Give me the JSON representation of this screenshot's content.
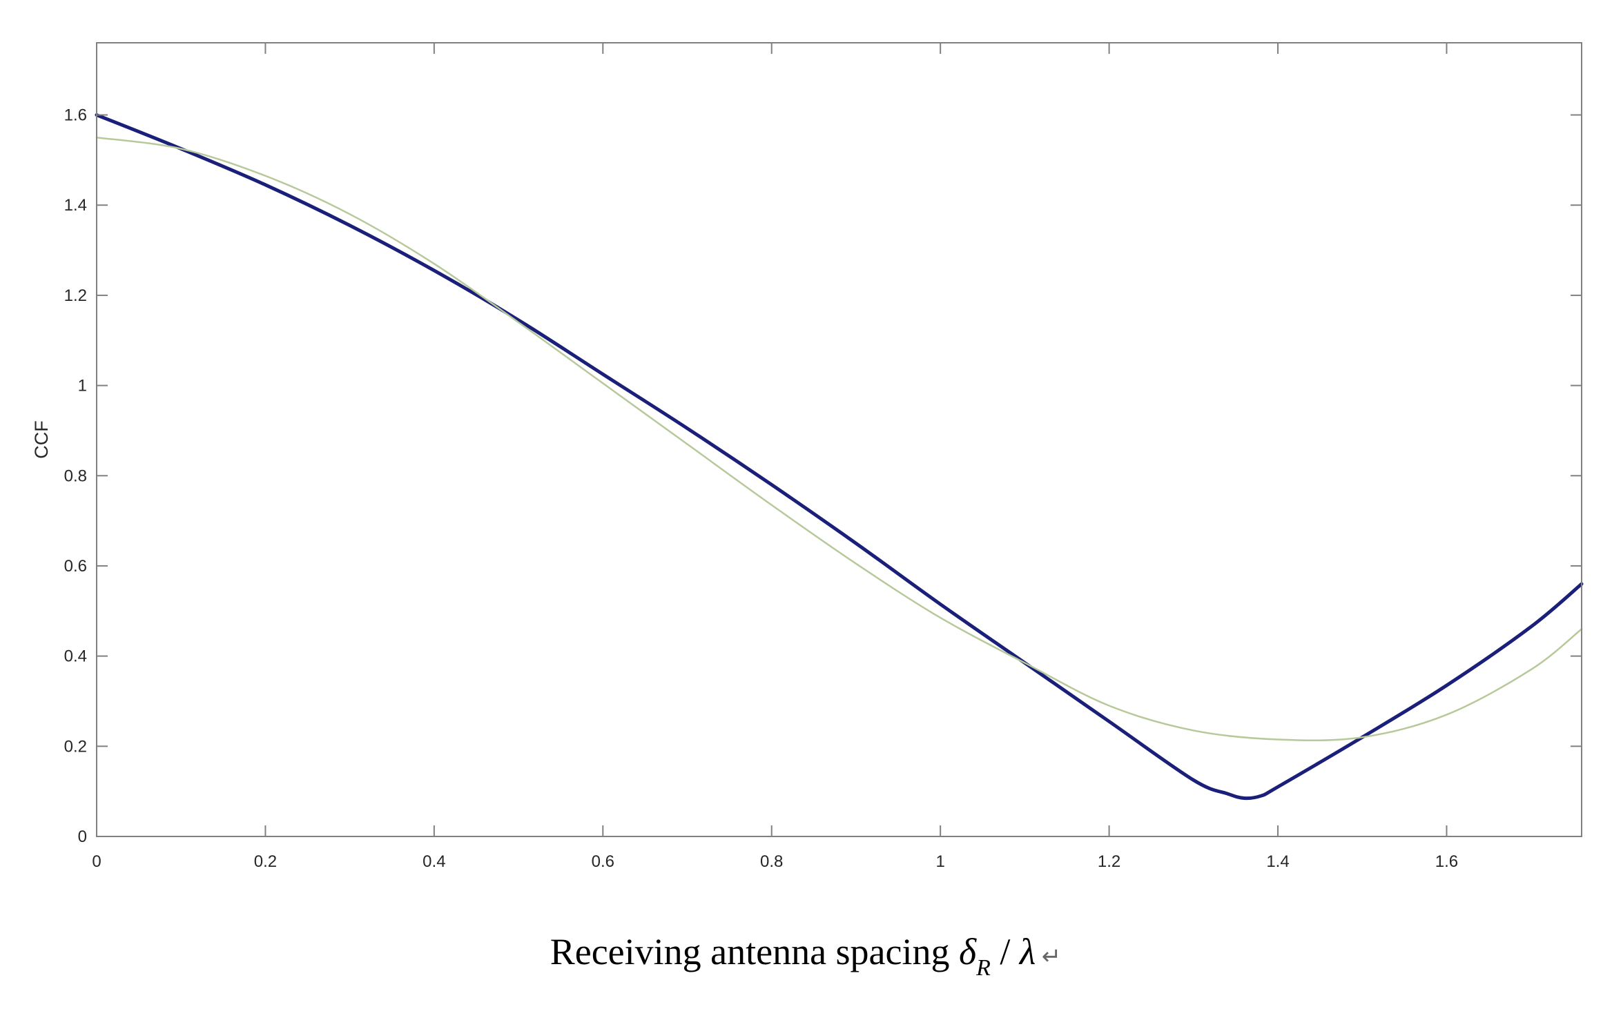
{
  "chart_data": {
    "type": "line",
    "title": "",
    "xlabel": {
      "main": "Receiving antenna spacing ",
      "symbol": "δ",
      "subscript": "R",
      "separator": " / ",
      "lambda": "λ",
      "trailing_mark": " ↵"
    },
    "ylabel": "CCF",
    "xlim": [
      0,
      1.76
    ],
    "ylim": [
      0,
      1.76
    ],
    "xticks": [
      0,
      0.2,
      0.4,
      0.6,
      0.8,
      1,
      1.2,
      1.4,
      1.6
    ],
    "xtick_labels": [
      "0",
      "0.2",
      "0.4",
      "0.6",
      "0.8",
      "1",
      "1.2",
      "1.4",
      "1.6"
    ],
    "yticks": [
      0,
      0.2,
      0.4,
      0.6,
      0.8,
      1,
      1.2,
      1.4,
      1.6
    ],
    "ytick_labels": [
      "0",
      "0.2",
      "0.4",
      "0.6",
      "0.8",
      "1",
      "1.2",
      "1.4",
      "1.6"
    ],
    "grid": false,
    "legend": false,
    "series": [
      {
        "color": "#1a1f7a",
        "width": 5,
        "x": [
          0,
          0.1,
          0.2,
          0.3,
          0.4,
          0.5,
          0.6,
          0.7,
          0.8,
          0.9,
          1.0,
          1.1,
          1.2,
          1.3,
          1.34,
          1.36,
          1.38,
          1.4,
          1.5,
          1.6,
          1.7,
          1.76
        ],
        "y": [
          1.6,
          1.525,
          1.445,
          1.355,
          1.255,
          1.145,
          1.025,
          0.905,
          0.78,
          0.65,
          0.515,
          0.385,
          0.255,
          0.125,
          0.095,
          0.085,
          0.09,
          0.11,
          0.22,
          0.335,
          0.465,
          0.56
        ]
      },
      {
        "color": "#b7c99a",
        "width": 2.5,
        "x": [
          0,
          0.1,
          0.2,
          0.3,
          0.4,
          0.5,
          0.6,
          0.7,
          0.8,
          0.9,
          1.0,
          1.1,
          1.2,
          1.3,
          1.4,
          1.5,
          1.6,
          1.7,
          1.76
        ],
        "y": [
          1.55,
          1.525,
          1.465,
          1.38,
          1.27,
          1.14,
          1.005,
          0.87,
          0.735,
          0.605,
          0.485,
          0.385,
          0.29,
          0.235,
          0.215,
          0.22,
          0.27,
          0.37,
          0.46
        ]
      }
    ]
  }
}
